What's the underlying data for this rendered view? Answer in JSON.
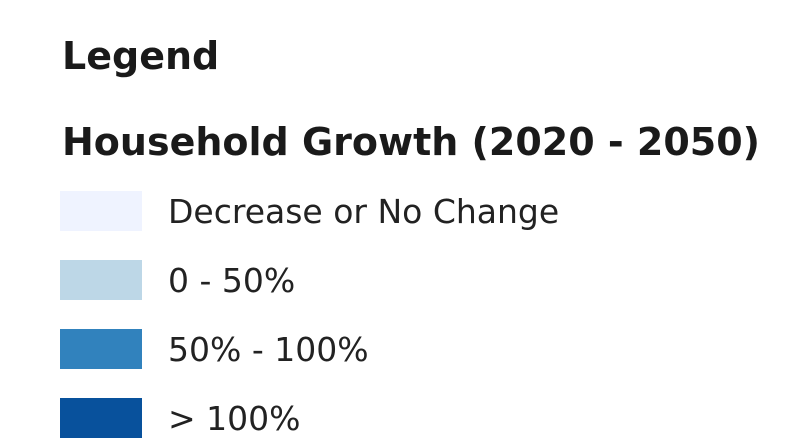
{
  "legend": {
    "title": "Legend",
    "subtitle": "Household Growth (2020 - 2050)",
    "items": [
      {
        "label": "Decrease or No Change",
        "color": "#eff3ff"
      },
      {
        "label": "0 - 50%",
        "color": "#bdd7e7"
      },
      {
        "label": "50% - 100%",
        "color": "#3182bd"
      },
      {
        "label": "> 100%",
        "color": "#08519c"
      }
    ]
  }
}
